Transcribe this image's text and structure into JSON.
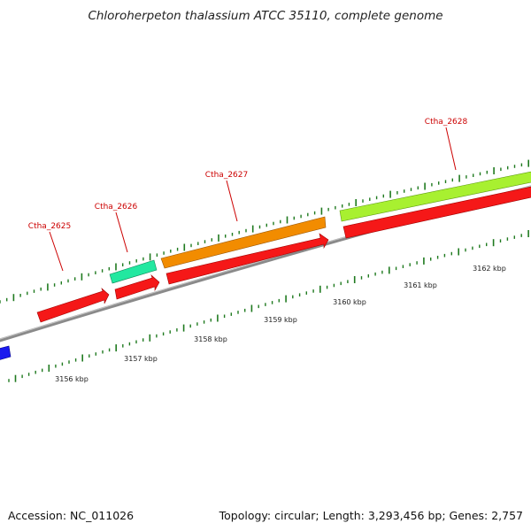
{
  "title": "Chloroherpeton thalassium ATCC 35110, complete genome",
  "footer": {
    "accession": "Accession: NC_011026",
    "summary": "Topology: circular; Length: 3,293,456 bp; Genes: 2,757"
  },
  "colors": {
    "backbone": "#8c8c8c",
    "tick": "#1f7a1f",
    "label": "#cc0000",
    "gene_red": "#f51818",
    "gene_teal": "#22e8a0",
    "gene_orange": "#f28c00",
    "gene_lime": "#a8f030",
    "gene_blue": "#1a1aee"
  },
  "genes": [
    {
      "name": "Ctha_2625",
      "color": "gene_red",
      "labeled": true
    },
    {
      "name": "Ctha_2626",
      "color": "gene_teal",
      "labeled": true
    },
    {
      "name": "Ctha_2627",
      "color": "gene_orange",
      "labeled": true
    },
    {
      "name": "Ctha_2628",
      "color": "gene_lime",
      "labeled": true
    }
  ],
  "scale_labels": [
    "3156 kbp",
    "3157 kbp",
    "3158 kbp",
    "3159 kbp",
    "3160 kbp",
    "3161 kbp",
    "3162 kbp"
  ]
}
